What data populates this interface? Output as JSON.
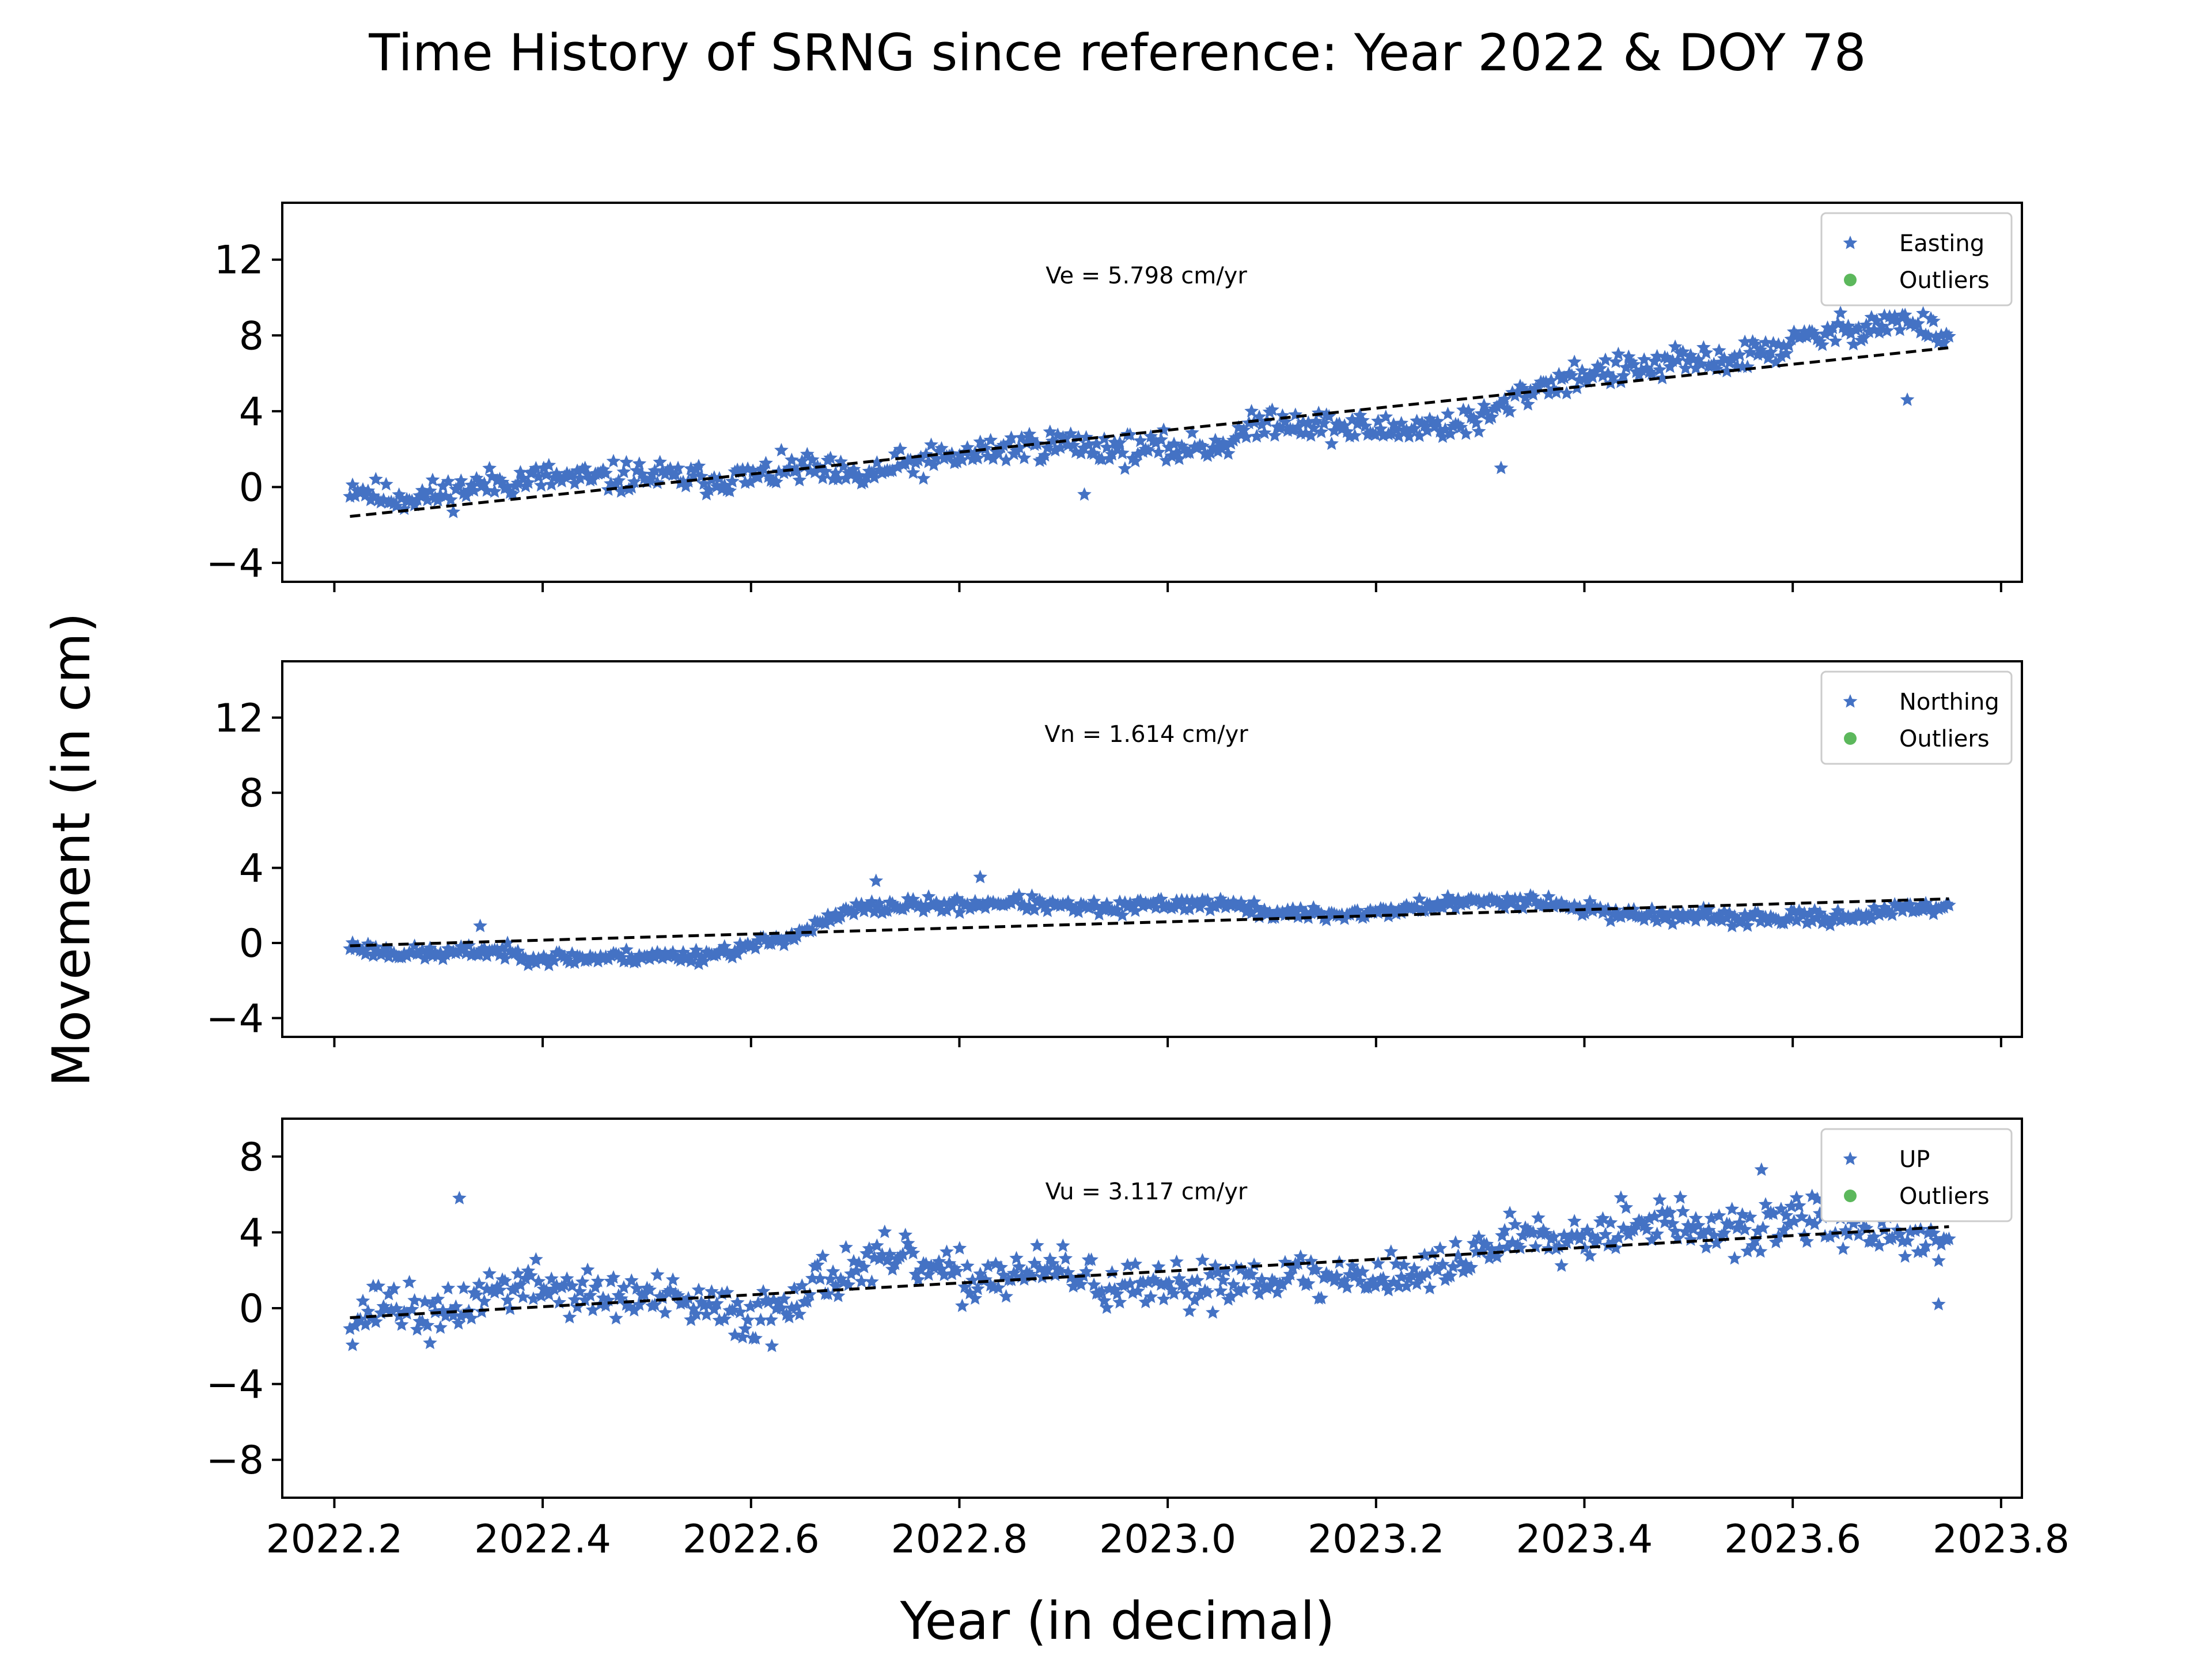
{
  "figure": {
    "title": "Time History of SRNG since reference: Year 2022 & DOY 78",
    "xlabel": "Year (in decimal)",
    "ylabel": "Movement (in cm)"
  },
  "colors": {
    "points": "#4472c4",
    "outliers": "#5cb85c",
    "trend": "#000000"
  },
  "chart_data": [
    {
      "type": "scatter",
      "panel": "east",
      "annotation": "Ve =  5.798 cm/yr",
      "legend": [
        "Easting",
        "Outliers"
      ],
      "legend_position": "top-right",
      "xlim": [
        2022.15,
        2023.82
      ],
      "ylim": [
        -5,
        15
      ],
      "yticks": [
        -4,
        0,
        4,
        8,
        12
      ],
      "x_start": 2022.215,
      "x_end": 2023.75,
      "trend": [
        [
          2022.215,
          -1.55
        ],
        [
          2023.75,
          7.35
        ]
      ],
      "noise": 0.75,
      "seed": 11,
      "points": [
        [
          2022.22,
          0.0
        ],
        [
          2022.25,
          -0.6
        ],
        [
          2022.3,
          -0.4
        ],
        [
          2022.35,
          0.2
        ],
        [
          2022.4,
          0.5
        ],
        [
          2022.45,
          0.4
        ],
        [
          2022.5,
          0.6
        ],
        [
          2022.55,
          0.4
        ],
        [
          2022.6,
          0.5
        ],
        [
          2022.65,
          1.0
        ],
        [
          2022.7,
          0.4
        ],
        [
          2022.75,
          1.2
        ],
        [
          2022.8,
          1.6
        ],
        [
          2022.85,
          2.1
        ],
        [
          2022.9,
          2.3
        ],
        [
          2022.95,
          2.0
        ],
        [
          2023.0,
          2.0
        ],
        [
          2023.05,
          2.2
        ],
        [
          2023.1,
          3.6
        ],
        [
          2023.15,
          3.2
        ],
        [
          2023.2,
          3.0
        ],
        [
          2023.25,
          3.2
        ],
        [
          2023.3,
          3.5
        ],
        [
          2023.35,
          5.2
        ],
        [
          2023.4,
          6.0
        ],
        [
          2023.45,
          6.2
        ],
        [
          2023.5,
          6.6
        ],
        [
          2023.55,
          6.8
        ],
        [
          2023.6,
          7.6
        ],
        [
          2023.65,
          8.3
        ],
        [
          2023.7,
          8.8
        ],
        [
          2023.75,
          8.0
        ]
      ],
      "outliers_points": [
        [
          2023.32,
          1.0
        ],
        [
          2022.92,
          -0.4
        ],
        [
          2023.71,
          4.6
        ]
      ]
    },
    {
      "type": "scatter",
      "panel": "north",
      "annotation": "Vn =  1.614 cm/yr",
      "legend": [
        "Northing",
        "Outliers"
      ],
      "legend_position": "top-right",
      "xlim": [
        2022.15,
        2023.82
      ],
      "ylim": [
        -5,
        15
      ],
      "yticks": [
        -4,
        0,
        4,
        8,
        12
      ],
      "x_start": 2022.215,
      "x_end": 2023.75,
      "trend": [
        [
          2022.215,
          -0.15
        ],
        [
          2023.75,
          2.35
        ]
      ],
      "noise": 0.35,
      "seed": 23,
      "points": [
        [
          2022.22,
          -0.2
        ],
        [
          2022.25,
          -0.5
        ],
        [
          2022.3,
          -0.6
        ],
        [
          2022.35,
          -0.4
        ],
        [
          2022.4,
          -0.8
        ],
        [
          2022.45,
          -0.8
        ],
        [
          2022.5,
          -0.7
        ],
        [
          2022.55,
          -0.7
        ],
        [
          2022.6,
          -0.2
        ],
        [
          2022.65,
          0.6
        ],
        [
          2022.7,
          1.8
        ],
        [
          2022.75,
          2.0
        ],
        [
          2022.8,
          2.0
        ],
        [
          2022.85,
          2.2
        ],
        [
          2022.9,
          1.9
        ],
        [
          2022.95,
          1.8
        ],
        [
          2023.0,
          2.1
        ],
        [
          2023.05,
          2.1
        ],
        [
          2023.1,
          1.6
        ],
        [
          2023.15,
          1.5
        ],
        [
          2023.2,
          1.6
        ],
        [
          2023.25,
          2.0
        ],
        [
          2023.3,
          2.2
        ],
        [
          2023.35,
          2.3
        ],
        [
          2023.4,
          1.8
        ],
        [
          2023.45,
          1.5
        ],
        [
          2023.5,
          1.4
        ],
        [
          2023.55,
          1.3
        ],
        [
          2023.6,
          1.3
        ],
        [
          2023.65,
          1.4
        ],
        [
          2023.7,
          1.7
        ],
        [
          2023.75,
          2.0
        ]
      ],
      "outliers_points": [
        [
          2022.72,
          3.3
        ],
        [
          2022.82,
          3.5
        ],
        [
          2022.34,
          0.9
        ]
      ]
    },
    {
      "type": "scatter",
      "panel": "up",
      "annotation": "Vu =  3.117 cm/yr",
      "legend": [
        "UP",
        "Outliers"
      ],
      "legend_position": "top-right",
      "xlim": [
        2022.15,
        2023.82
      ],
      "ylim": [
        -10,
        10
      ],
      "yticks": [
        -8,
        -4,
        0,
        4,
        8
      ],
      "x_start": 2022.215,
      "x_end": 2023.75,
      "trend": [
        [
          2022.215,
          -0.5
        ],
        [
          2023.75,
          4.3
        ]
      ],
      "noise": 1.2,
      "seed": 37,
      "points": [
        [
          2022.22,
          -0.5
        ],
        [
          2022.25,
          0.4
        ],
        [
          2022.3,
          -0.7
        ],
        [
          2022.35,
          1.0
        ],
        [
          2022.4,
          1.2
        ],
        [
          2022.45,
          0.6
        ],
        [
          2022.5,
          0.6
        ],
        [
          2022.55,
          0.0
        ],
        [
          2022.6,
          -0.5
        ],
        [
          2022.65,
          1.0
        ],
        [
          2022.7,
          2.2
        ],
        [
          2022.75,
          2.5
        ],
        [
          2022.8,
          1.5
        ],
        [
          2022.85,
          1.8
        ],
        [
          2022.9,
          2.0
        ],
        [
          2022.95,
          1.0
        ],
        [
          2023.0,
          0.8
        ],
        [
          2023.05,
          1.5
        ],
        [
          2023.1,
          1.8
        ],
        [
          2023.15,
          1.5
        ],
        [
          2023.2,
          1.8
        ],
        [
          2023.25,
          1.8
        ],
        [
          2023.3,
          3.0
        ],
        [
          2023.35,
          4.2
        ],
        [
          2023.4,
          3.8
        ],
        [
          2023.45,
          4.8
        ],
        [
          2023.5,
          4.3
        ],
        [
          2023.55,
          3.8
        ],
        [
          2023.6,
          4.8
        ],
        [
          2023.65,
          4.4
        ],
        [
          2023.7,
          3.8
        ],
        [
          2023.75,
          3.5
        ]
      ],
      "outliers_points": [
        [
          2022.32,
          5.8
        ],
        [
          2023.57,
          7.3
        ],
        [
          2023.74,
          0.2
        ],
        [
          2022.62,
          -2.0
        ]
      ]
    }
  ],
  "x_axis": {
    "ticks": [
      2022.2,
      2022.4,
      2022.6,
      2022.8,
      2023.0,
      2023.2,
      2023.4,
      2023.6,
      2023.8
    ],
    "tick_labels": [
      "2022.2",
      "2022.4",
      "2022.6",
      "2022.8",
      "2023.0",
      "2023.2",
      "2023.4",
      "2023.6",
      "2023.8"
    ]
  }
}
